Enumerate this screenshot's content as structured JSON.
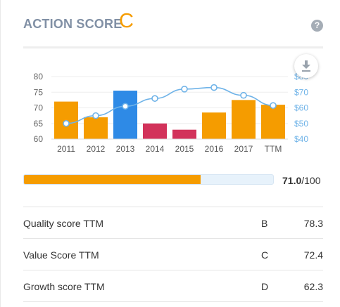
{
  "header": {
    "title": "ACTION SCORE",
    "grade": "C",
    "help_icon": "question-circle-icon"
  },
  "chart_data": {
    "type": "bar",
    "categories": [
      "2011",
      "2012",
      "2013",
      "2014",
      "2015",
      "2016",
      "2017",
      "TTM"
    ],
    "values": [
      72,
      67,
      75.5,
      65,
      63,
      68.5,
      72.5,
      71
    ],
    "bar_colors": [
      "#f59c00",
      "#f59c00",
      "#2e8ae6",
      "#d2325a",
      "#d2325a",
      "#f59c00",
      "#f59c00",
      "#f59c00"
    ],
    "y_ticks": [
      60,
      65,
      70,
      75,
      80
    ],
    "ylim": [
      60,
      80
    ],
    "series": [
      {
        "values": [
          50,
          55,
          61,
          66,
          72,
          73,
          68,
          61.5
        ],
        "color": "#6fb3e8"
      }
    ],
    "y2_ticks": [
      "$40",
      "$50",
      "$60",
      "$70",
      "$80"
    ],
    "y2_values": [
      40,
      50,
      60,
      70,
      80
    ],
    "y2lim": [
      40,
      80
    ],
    "download_icon": "download-icon"
  },
  "score": {
    "value": "71.0",
    "suffix": "/100",
    "fraction": 0.71
  },
  "rows": [
    {
      "label": "Quality score TTM",
      "grade": "B",
      "value": "78.3"
    },
    {
      "label": "Value Score TTM",
      "grade": "C",
      "value": "72.4"
    },
    {
      "label": "Growth score TTM",
      "grade": "D",
      "value": "62.3"
    }
  ],
  "colors": {
    "accent": "#f59c00",
    "title": "#8190a5"
  }
}
